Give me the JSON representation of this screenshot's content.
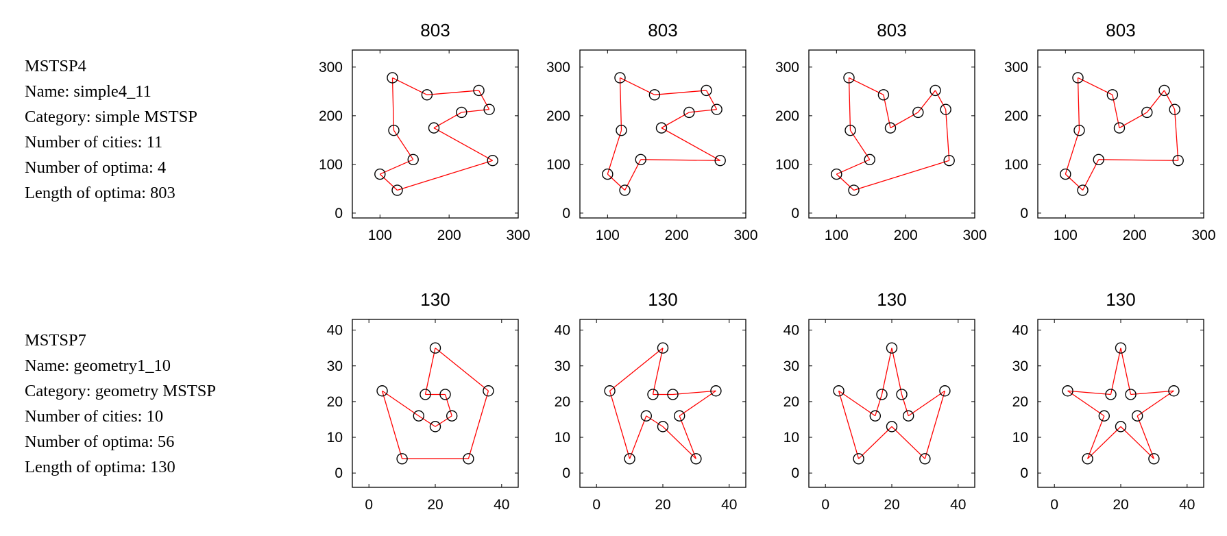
{
  "problems": [
    {
      "title": "MSTSP4",
      "name": "Name: simple4_11",
      "category": "Category: simple MSTSP",
      "num_cities": "Number of cities: 11",
      "num_optima": "Number of optima: 4",
      "length": "Length of optima: 803"
    },
    {
      "title": "MSTSP7",
      "name": "Name: geometry1_10",
      "category": "Category: geometry MSTSP",
      "num_cities": "Number of cities: 10",
      "num_optima": "Number of optima: 56",
      "length": "Length of optima: 130"
    }
  ],
  "colors": {
    "route": "#ff0000",
    "city": "#000000",
    "axis": "#000000"
  },
  "chart_data": [
    {
      "type": "scatter",
      "title": "803",
      "xlim": [
        60,
        300
      ],
      "ylim": [
        -10,
        335
      ],
      "xticks": [
        100,
        200,
        300
      ],
      "yticks": [
        0,
        100,
        200,
        300
      ],
      "points": [
        [
          118,
          278
        ],
        [
          168,
          243
        ],
        [
          243,
          252
        ],
        [
          258,
          213
        ],
        [
          218,
          207
        ],
        [
          178,
          175
        ],
        [
          263,
          108
        ],
        [
          125,
          47
        ],
        [
          100,
          80
        ],
        [
          148,
          110
        ],
        [
          120,
          170
        ]
      ],
      "tour": [
        0,
        1,
        2,
        3,
        4,
        5,
        6,
        7,
        8,
        9,
        10,
        0
      ]
    },
    {
      "type": "scatter",
      "title": "803",
      "xlim": [
        60,
        300
      ],
      "ylim": [
        -10,
        335
      ],
      "xticks": [
        100,
        200,
        300
      ],
      "yticks": [
        0,
        100,
        200,
        300
      ],
      "points": [
        [
          118,
          278
        ],
        [
          168,
          243
        ],
        [
          243,
          252
        ],
        [
          258,
          213
        ],
        [
          218,
          207
        ],
        [
          178,
          175
        ],
        [
          263,
          108
        ],
        [
          125,
          47
        ],
        [
          100,
          80
        ],
        [
          148,
          110
        ],
        [
          120,
          170
        ]
      ],
      "tour": [
        0,
        1,
        2,
        3,
        4,
        5,
        6,
        9,
        7,
        8,
        10,
        0
      ]
    },
    {
      "type": "scatter",
      "title": "803",
      "xlim": [
        60,
        300
      ],
      "ylim": [
        -10,
        335
      ],
      "xticks": [
        100,
        200,
        300
      ],
      "yticks": [
        0,
        100,
        200,
        300
      ],
      "points": [
        [
          118,
          278
        ],
        [
          168,
          243
        ],
        [
          243,
          252
        ],
        [
          258,
          213
        ],
        [
          218,
          207
        ],
        [
          178,
          175
        ],
        [
          263,
          108
        ],
        [
          125,
          47
        ],
        [
          100,
          80
        ],
        [
          148,
          110
        ],
        [
          120,
          170
        ]
      ],
      "tour": [
        0,
        1,
        5,
        4,
        2,
        3,
        6,
        7,
        8,
        9,
        10,
        0
      ]
    },
    {
      "type": "scatter",
      "title": "803",
      "xlim": [
        60,
        300
      ],
      "ylim": [
        -10,
        335
      ],
      "xticks": [
        100,
        200,
        300
      ],
      "yticks": [
        0,
        100,
        200,
        300
      ],
      "points": [
        [
          118,
          278
        ],
        [
          168,
          243
        ],
        [
          243,
          252
        ],
        [
          258,
          213
        ],
        [
          218,
          207
        ],
        [
          178,
          175
        ],
        [
          263,
          108
        ],
        [
          125,
          47
        ],
        [
          100,
          80
        ],
        [
          148,
          110
        ],
        [
          120,
          170
        ]
      ],
      "tour": [
        0,
        1,
        5,
        4,
        2,
        3,
        6,
        9,
        7,
        8,
        10,
        0
      ]
    },
    {
      "type": "scatter",
      "title": "130",
      "xlim": [
        -5,
        45
      ],
      "ylim": [
        -4,
        43
      ],
      "xticks": [
        0,
        20,
        40
      ],
      "yticks": [
        0,
        10,
        20,
        30,
        40
      ],
      "points": [
        [
          20,
          35
        ],
        [
          36,
          23
        ],
        [
          30,
          4
        ],
        [
          10,
          4
        ],
        [
          4,
          23
        ],
        [
          15,
          16
        ],
        [
          20,
          13
        ],
        [
          25,
          16
        ],
        [
          23,
          22
        ],
        [
          17,
          22
        ]
      ],
      "tour": [
        0,
        1,
        2,
        3,
        4,
        5,
        6,
        7,
        8,
        9,
        0
      ]
    },
    {
      "type": "scatter",
      "title": "130",
      "xlim": [
        -5,
        45
      ],
      "ylim": [
        -4,
        43
      ],
      "xticks": [
        0,
        20,
        40
      ],
      "yticks": [
        0,
        10,
        20,
        30,
        40
      ],
      "points": [
        [
          20,
          35
        ],
        [
          36,
          23
        ],
        [
          30,
          4
        ],
        [
          10,
          4
        ],
        [
          4,
          23
        ],
        [
          15,
          16
        ],
        [
          20,
          13
        ],
        [
          25,
          16
        ],
        [
          23,
          22
        ],
        [
          17,
          22
        ]
      ],
      "tour": [
        0,
        4,
        3,
        5,
        6,
        2,
        7,
        1,
        8,
        9,
        0
      ]
    },
    {
      "type": "scatter",
      "title": "130",
      "xlim": [
        -5,
        45
      ],
      "ylim": [
        -4,
        43
      ],
      "xticks": [
        0,
        20,
        40
      ],
      "yticks": [
        0,
        10,
        20,
        30,
        40
      ],
      "points": [
        [
          20,
          35
        ],
        [
          36,
          23
        ],
        [
          30,
          4
        ],
        [
          10,
          4
        ],
        [
          4,
          23
        ],
        [
          15,
          16
        ],
        [
          20,
          13
        ],
        [
          25,
          16
        ],
        [
          23,
          22
        ],
        [
          17,
          22
        ]
      ],
      "tour": [
        0,
        8,
        7,
        1,
        2,
        6,
        3,
        4,
        5,
        9,
        0
      ]
    },
    {
      "type": "scatter",
      "title": "130",
      "xlim": [
        -5,
        45
      ],
      "ylim": [
        -4,
        43
      ],
      "xticks": [
        0,
        20,
        40
      ],
      "yticks": [
        0,
        10,
        20,
        30,
        40
      ],
      "points": [
        [
          20,
          35
        ],
        [
          36,
          23
        ],
        [
          30,
          4
        ],
        [
          10,
          4
        ],
        [
          4,
          23
        ],
        [
          15,
          16
        ],
        [
          20,
          13
        ],
        [
          25,
          16
        ],
        [
          23,
          22
        ],
        [
          17,
          22
        ]
      ],
      "tour": [
        0,
        8,
        1,
        7,
        2,
        6,
        3,
        5,
        4,
        9,
        0
      ]
    }
  ]
}
